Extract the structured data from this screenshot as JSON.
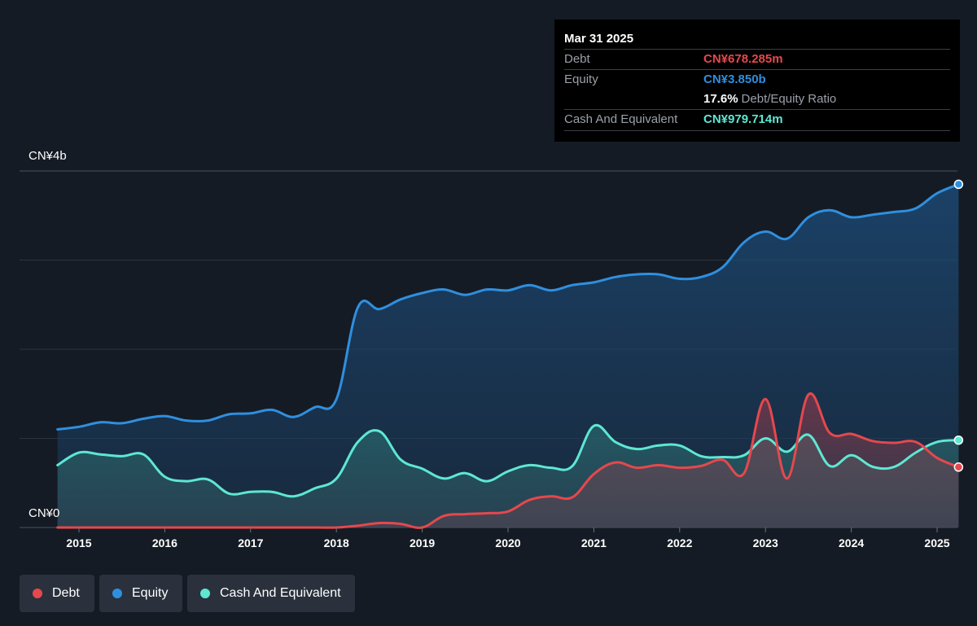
{
  "chart_data": {
    "type": "area",
    "currency_unit": "CN¥",
    "y_axis": {
      "top_label": "CN¥4b",
      "bottom_label": "CN¥0",
      "ylim": [
        0,
        4.0
      ],
      "unit": "billion"
    },
    "x_ticks": [
      "2015",
      "2016",
      "2017",
      "2018",
      "2019",
      "2020",
      "2021",
      "2022",
      "2023",
      "2024",
      "2025"
    ],
    "grid": true,
    "series": [
      {
        "name": "Debt",
        "color": "#e5484d",
        "points": [
          [
            2014.75,
            0
          ],
          [
            2015.25,
            0
          ],
          [
            2015.75,
            0
          ],
          [
            2016.25,
            0
          ],
          [
            2016.75,
            0
          ],
          [
            2017.25,
            0
          ],
          [
            2017.75,
            0
          ],
          [
            2018.0,
            0
          ],
          [
            2018.25,
            0.02
          ],
          [
            2018.5,
            0.05
          ],
          [
            2018.75,
            0.04
          ],
          [
            2019.0,
            0
          ],
          [
            2019.25,
            0.13
          ],
          [
            2019.5,
            0.15
          ],
          [
            2019.75,
            0.16
          ],
          [
            2020.0,
            0.18
          ],
          [
            2020.25,
            0.31
          ],
          [
            2020.5,
            0.35
          ],
          [
            2020.75,
            0.34
          ],
          [
            2021.0,
            0.6
          ],
          [
            2021.25,
            0.73
          ],
          [
            2021.5,
            0.67
          ],
          [
            2021.75,
            0.7
          ],
          [
            2022.0,
            0.67
          ],
          [
            2022.25,
            0.69
          ],
          [
            2022.5,
            0.76
          ],
          [
            2022.75,
            0.61
          ],
          [
            2023.0,
            1.44
          ],
          [
            2023.25,
            0.55
          ],
          [
            2023.5,
            1.49
          ],
          [
            2023.75,
            1.06
          ],
          [
            2024.0,
            1.05
          ],
          [
            2024.25,
            0.97
          ],
          [
            2024.5,
            0.95
          ],
          [
            2024.75,
            0.96
          ],
          [
            2025.0,
            0.78
          ],
          [
            2025.25,
            0.678
          ]
        ]
      },
      {
        "name": "Equity",
        "color": "#2f8fdf",
        "points": [
          [
            2014.75,
            1.1
          ],
          [
            2015.0,
            1.13
          ],
          [
            2015.25,
            1.18
          ],
          [
            2015.5,
            1.17
          ],
          [
            2015.75,
            1.22
          ],
          [
            2016.0,
            1.25
          ],
          [
            2016.25,
            1.2
          ],
          [
            2016.5,
            1.2
          ],
          [
            2016.75,
            1.27
          ],
          [
            2017.0,
            1.28
          ],
          [
            2017.25,
            1.32
          ],
          [
            2017.5,
            1.24
          ],
          [
            2017.75,
            1.35
          ],
          [
            2018.0,
            1.44
          ],
          [
            2018.25,
            2.47
          ],
          [
            2018.5,
            2.45
          ],
          [
            2018.75,
            2.56
          ],
          [
            2019.0,
            2.63
          ],
          [
            2019.25,
            2.67
          ],
          [
            2019.5,
            2.61
          ],
          [
            2019.75,
            2.67
          ],
          [
            2020.0,
            2.66
          ],
          [
            2020.25,
            2.72
          ],
          [
            2020.5,
            2.66
          ],
          [
            2020.75,
            2.72
          ],
          [
            2021.0,
            2.75
          ],
          [
            2021.25,
            2.81
          ],
          [
            2021.5,
            2.84
          ],
          [
            2021.75,
            2.84
          ],
          [
            2022.0,
            2.79
          ],
          [
            2022.25,
            2.81
          ],
          [
            2022.5,
            2.92
          ],
          [
            2022.75,
            3.2
          ],
          [
            2023.0,
            3.32
          ],
          [
            2023.25,
            3.24
          ],
          [
            2023.5,
            3.48
          ],
          [
            2023.75,
            3.56
          ],
          [
            2024.0,
            3.48
          ],
          [
            2024.25,
            3.51
          ],
          [
            2024.5,
            3.54
          ],
          [
            2024.75,
            3.58
          ],
          [
            2025.0,
            3.75
          ],
          [
            2025.25,
            3.85
          ]
        ]
      },
      {
        "name": "Cash And Equivalent",
        "color": "#5ee7d2",
        "points": [
          [
            2014.75,
            0.7
          ],
          [
            2015.0,
            0.84
          ],
          [
            2015.25,
            0.82
          ],
          [
            2015.5,
            0.8
          ],
          [
            2015.75,
            0.82
          ],
          [
            2016.0,
            0.57
          ],
          [
            2016.25,
            0.52
          ],
          [
            2016.5,
            0.54
          ],
          [
            2016.75,
            0.38
          ],
          [
            2017.0,
            0.4
          ],
          [
            2017.25,
            0.4
          ],
          [
            2017.5,
            0.35
          ],
          [
            2017.75,
            0.44
          ],
          [
            2018.0,
            0.55
          ],
          [
            2018.25,
            0.96
          ],
          [
            2018.5,
            1.08
          ],
          [
            2018.75,
            0.76
          ],
          [
            2019.0,
            0.66
          ],
          [
            2019.25,
            0.55
          ],
          [
            2019.5,
            0.61
          ],
          [
            2019.75,
            0.52
          ],
          [
            2020.0,
            0.63
          ],
          [
            2020.25,
            0.7
          ],
          [
            2020.5,
            0.67
          ],
          [
            2020.75,
            0.69
          ],
          [
            2021.0,
            1.14
          ],
          [
            2021.25,
            0.96
          ],
          [
            2021.5,
            0.88
          ],
          [
            2021.75,
            0.92
          ],
          [
            2022.0,
            0.92
          ],
          [
            2022.25,
            0.8
          ],
          [
            2022.5,
            0.79
          ],
          [
            2022.75,
            0.81
          ],
          [
            2023.0,
            1.0
          ],
          [
            2023.25,
            0.85
          ],
          [
            2023.5,
            1.04
          ],
          [
            2023.75,
            0.69
          ],
          [
            2024.0,
            0.81
          ],
          [
            2024.25,
            0.68
          ],
          [
            2024.5,
            0.68
          ],
          [
            2024.75,
            0.84
          ],
          [
            2025.0,
            0.96
          ],
          [
            2025.25,
            0.98
          ]
        ]
      }
    ]
  },
  "tooltip": {
    "date": "Mar 31 2025",
    "debt_label": "Debt",
    "debt_value": "CN¥678.285m",
    "equity_label": "Equity",
    "equity_value": "CN¥3.850b",
    "ratio_value": "17.6%",
    "ratio_text": "Debt/Equity Ratio",
    "cash_label": "Cash And Equivalent",
    "cash_value": "CN¥979.714m"
  },
  "legend": [
    {
      "label": "Debt",
      "color": "#e5484d"
    },
    {
      "label": "Equity",
      "color": "#2f8fdf"
    },
    {
      "label": "Cash And Equivalent",
      "color": "#5ee7d2"
    }
  ]
}
